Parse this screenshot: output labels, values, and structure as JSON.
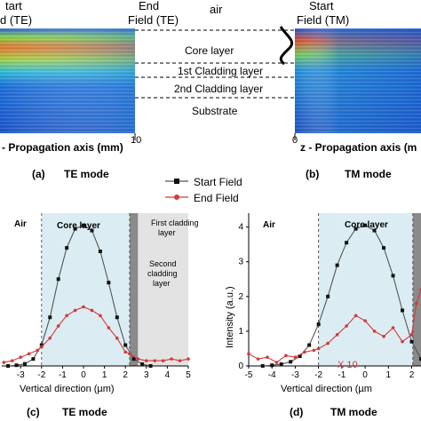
{
  "top": {
    "label_start_te_1": "tart",
    "label_start_te_2": "d (TE)",
    "label_end_te_1": "End",
    "label_end_te_2": "Field (TE)",
    "label_air": "air",
    "label_start_tm_1": "Start",
    "label_start_tm_2": "Field (TM)",
    "layers": [
      "Core layer",
      "1st Cladding layer",
      "2nd Cladding layer",
      "Substrate"
    ],
    "axis_left": "- Propagation axis (mm)",
    "axis_right": "z - Propagation axis (m",
    "tick_left_end": "10",
    "tick_right_start": "0",
    "caption_a_letter": "(a)",
    "caption_a_text": "TE mode",
    "caption_b_letter": "(b)",
    "caption_b_text": "TM mode"
  },
  "legend": {
    "start": "Start Field",
    "end": "End Field"
  },
  "chart_data": [
    {
      "type": "line",
      "panel": "c",
      "xlabel": "Vertical direction (µm)",
      "xticks": [
        -3,
        -2,
        -1,
        0,
        1,
        2,
        3,
        4,
        5
      ],
      "xlim": [
        -3.9,
        5
      ],
      "ylim": [
        0,
        4.4
      ],
      "regions": [
        "Air",
        "Core layer",
        "First cladding layer",
        "Second cladding layer"
      ],
      "series": [
        {
          "name": "Start Field",
          "color": "#555555",
          "x": [
            -3.6,
            -3.2,
            -2.8,
            -2.4,
            -2.0,
            -1.6,
            -1.2,
            -0.8,
            -0.4,
            0.0,
            0.4,
            0.8,
            1.2,
            1.6,
            2.0,
            2.4,
            2.8,
            3.2
          ],
          "y": [
            0.0,
            0.02,
            0.06,
            0.2,
            0.6,
            1.4,
            2.5,
            3.4,
            3.95,
            4.05,
            3.9,
            3.3,
            2.4,
            1.4,
            0.6,
            0.2,
            0.05,
            0.0
          ]
        },
        {
          "name": "End Field",
          "color": "#d43a3a",
          "x": [
            -3.8,
            -3.4,
            -3.0,
            -2.6,
            -2.2,
            -2.0,
            -1.6,
            -1.2,
            -0.8,
            -0.4,
            0.0,
            0.4,
            0.8,
            1.2,
            1.6,
            2.0,
            2.2,
            2.6,
            3.0,
            3.4,
            3.8,
            4.2,
            4.6,
            5.0
          ],
          "y": [
            0.1,
            0.15,
            0.25,
            0.35,
            0.45,
            0.55,
            0.8,
            1.15,
            1.45,
            1.6,
            1.7,
            1.6,
            1.45,
            1.1,
            0.8,
            0.4,
            0.35,
            0.2,
            0.15,
            0.15,
            0.15,
            0.2,
            0.15,
            0.2
          ]
        }
      ],
      "caption_letter": "(c)",
      "caption_text": "TE mode"
    },
    {
      "type": "line",
      "panel": "d",
      "xlabel": "Vertical direction (µm",
      "ylabel": "Intensity (a.u.)",
      "xticks": [
        -5,
        -4,
        -3,
        -2,
        -1,
        0,
        1,
        2
      ],
      "yticks": [
        0,
        1,
        2,
        3,
        4
      ],
      "xlim": [
        -5,
        2.4
      ],
      "ylim": [
        0,
        4.4
      ],
      "regions": [
        "Air",
        "Core layer"
      ],
      "annotation": "X 10",
      "series": [
        {
          "name": "Start Field",
          "color": "#555555",
          "x": [
            -4.4,
            -4.0,
            -3.6,
            -3.2,
            -2.8,
            -2.4,
            -2.0,
            -1.6,
            -1.2,
            -0.8,
            -0.4,
            0.0,
            0.4,
            0.8,
            1.2,
            1.6,
            2.0,
            2.4
          ],
          "y": [
            0.0,
            0.02,
            0.05,
            0.12,
            0.28,
            0.6,
            1.2,
            2.0,
            2.9,
            3.55,
            3.95,
            4.05,
            3.9,
            3.4,
            2.6,
            1.6,
            0.7,
            0.2
          ]
        },
        {
          "name": "End Field",
          "color": "#d43a3a",
          "x": [
            -5.0,
            -4.6,
            -4.2,
            -3.8,
            -3.4,
            -3.0,
            -2.6,
            -2.2,
            -2.0,
            -1.6,
            -1.2,
            -0.8,
            -0.4,
            0.0,
            0.4,
            0.8,
            1.2,
            1.6,
            2.0,
            2.2,
            2.4
          ],
          "y": [
            0.35,
            0.2,
            0.25,
            0.1,
            0.3,
            0.25,
            0.4,
            0.45,
            0.5,
            0.65,
            0.9,
            1.15,
            1.45,
            1.3,
            1.0,
            0.85,
            1.1,
            0.7,
            0.9,
            1.8,
            2.2
          ]
        }
      ],
      "caption_letter": "(d)",
      "caption_text": "TM mode"
    }
  ]
}
